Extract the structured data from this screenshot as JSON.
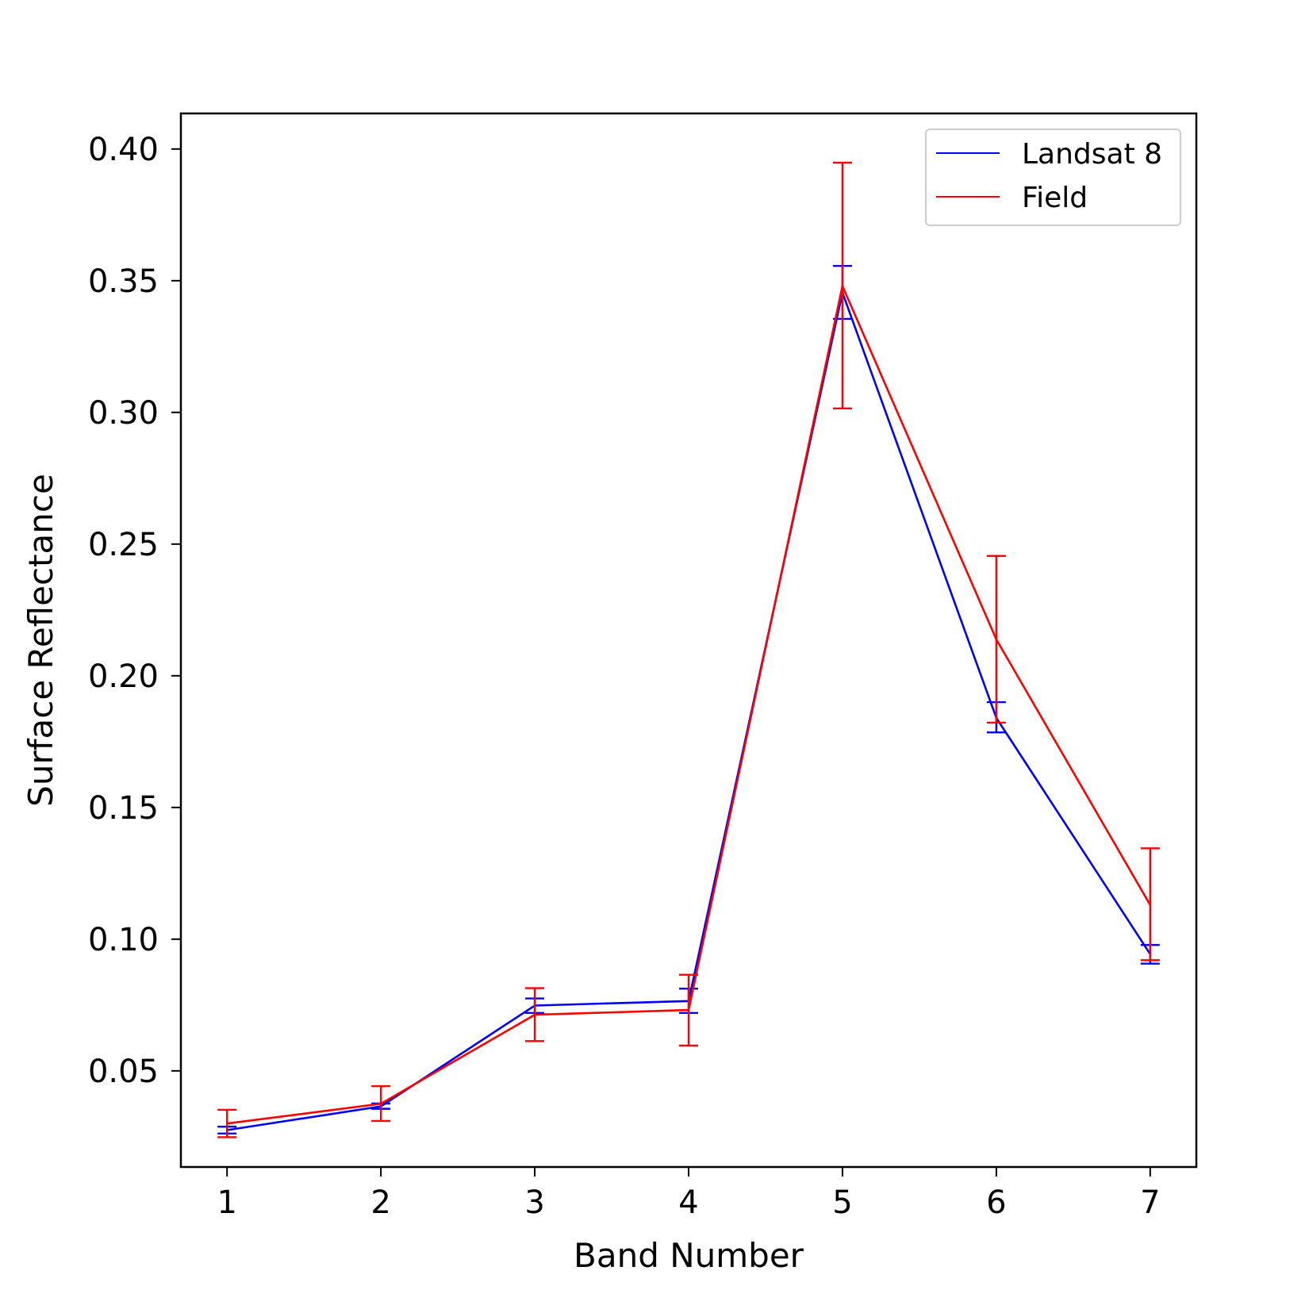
{
  "chart_data": {
    "type": "line",
    "title": "",
    "xlabel": "Band Number",
    "ylabel": "Surface Reflectance",
    "x": [
      1,
      2,
      3,
      4,
      5,
      6,
      7
    ],
    "xticks": [
      "1",
      "2",
      "3",
      "4",
      "5",
      "6",
      "7"
    ],
    "yticks": [
      "0.05",
      "0.10",
      "0.15",
      "0.20",
      "0.25",
      "0.30",
      "0.35",
      "0.40"
    ],
    "xlim": [
      0.7,
      7.3
    ],
    "ylim": [
      0.0135,
      0.4135
    ],
    "grid": false,
    "legend_position": "upper right",
    "series": [
      {
        "name": "Landsat 8",
        "color": "#0000ff",
        "y": [
          0.0275,
          0.0365,
          0.0748,
          0.0765,
          0.3455,
          0.184,
          0.0943
        ],
        "err_low": [
          0.0262,
          0.0356,
          0.072,
          0.072,
          0.3355,
          0.1785,
          0.0907
        ],
        "err_high": [
          0.0288,
          0.0376,
          0.0775,
          0.0812,
          0.3556,
          0.19,
          0.0978
        ]
      },
      {
        "name": "Field",
        "color": "#ff0000",
        "y": [
          0.03,
          0.0375,
          0.0713,
          0.0731,
          0.348,
          0.2138,
          0.113
        ],
        "err_low": [
          0.0248,
          0.031,
          0.0613,
          0.0596,
          0.3015,
          0.1822,
          0.092
        ],
        "err_high": [
          0.0352,
          0.0442,
          0.0814,
          0.0865,
          0.3948,
          0.2455,
          0.1345
        ]
      }
    ]
  }
}
